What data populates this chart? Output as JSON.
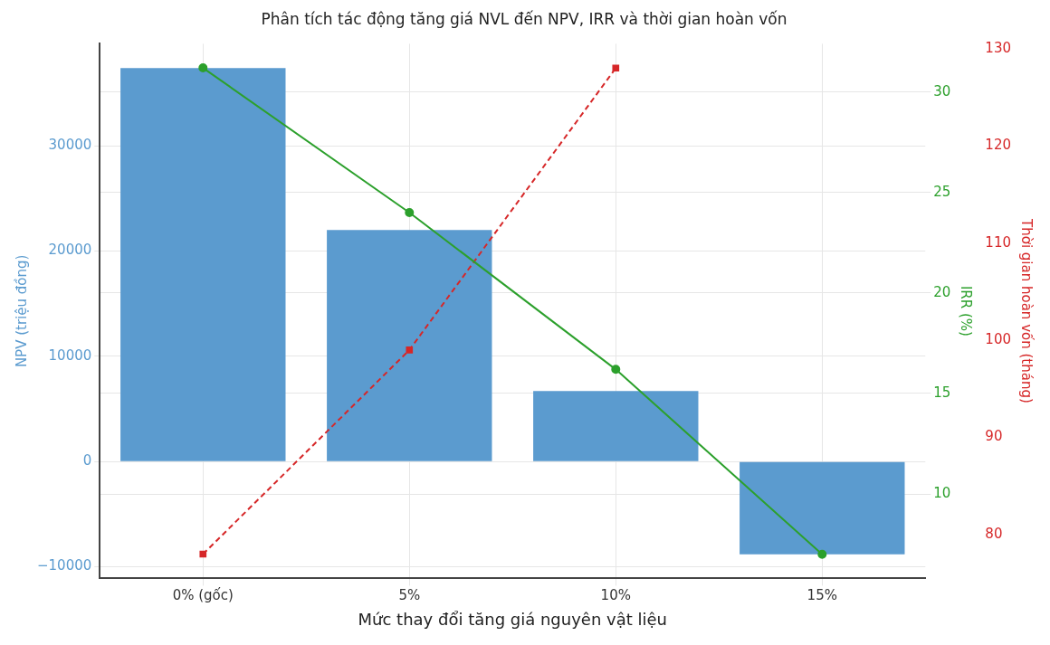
{
  "chart_data": {
    "type": "bar",
    "title": "Phân tích tác động tăng giá NVL đến NPV, IRR và thời gian hoàn vốn",
    "xlabel": "Mức thay đổi tăng giá nguyên vật liệu",
    "ylabel": "NPV (triệu đồng)",
    "y2label": "IRR (%)",
    "y3label": "Thời gian hoàn vốn (tháng)",
    "categories": [
      "0% (gốc)",
      "5%",
      "10%",
      "15%"
    ],
    "series": [
      {
        "color": "#5b9bcf",
        "values": [
          37400,
          22000,
          6700,
          -8800
        ]
      },
      {
        "type": "line",
        "axis": "y2",
        "color": "#2ca02c",
        "marker": "circle",
        "line_style": "solid",
        "values": [
          31.2,
          24.0,
          16.2,
          7.0
        ]
      },
      {
        "type": "line",
        "axis": "y3",
        "color": "#d62728",
        "marker": "square",
        "line_style": "dashed",
        "values": [
          78,
          99,
          128,
          null
        ]
      }
    ],
    "ylim": [
      -11100,
      39700
    ],
    "yticks": [
      -10000,
      0,
      10000,
      20000,
      30000
    ],
    "y2lim": [
      5.8,
      32.4
    ],
    "y2ticks": [
      10,
      15,
      20,
      25,
      30
    ],
    "y3lim": [
      75.5,
      130.5
    ],
    "y3ticks": [
      80,
      90,
      100,
      110,
      120,
      130
    ],
    "grid": true,
    "legend": false
  }
}
